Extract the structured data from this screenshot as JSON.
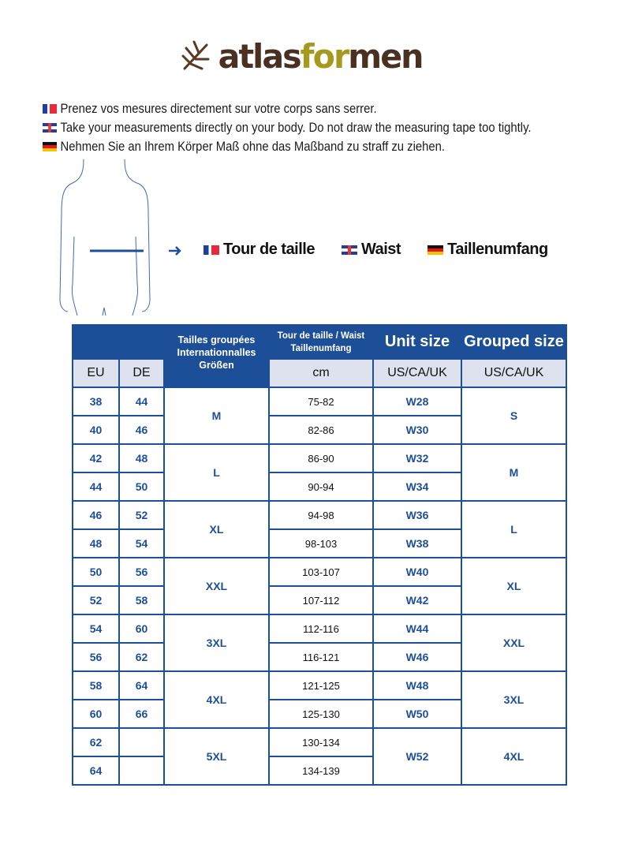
{
  "brand": {
    "logo_part1": "atlas",
    "logo_part2": "for",
    "logo_part3": "men",
    "colors": {
      "brown": "#4a3020",
      "olive": "#a59a1e"
    }
  },
  "instructions": [
    {
      "flag": "fr",
      "text": "Prenez vos mesures directement sur votre corps sans serrer."
    },
    {
      "flag": "uk",
      "text": "Take your measurements directly on your body. Do not draw the measuring tape too tightly."
    },
    {
      "flag": "de",
      "text": "Nehmen Sie an Ihrem Körper Maß ohne das Maßband zu straff zu ziehen."
    }
  ],
  "measure_labels": {
    "fr": "Tour de taille",
    "uk": "Waist",
    "de": "Taillenumfang"
  },
  "table": {
    "headers": {
      "grouped_intl": "Tailles groupées Internationnalles Größen",
      "waist_line1": "Tour de taille / Waist",
      "waist_line2": "Taillenumfang",
      "unit_size": "Unit size",
      "grouped_size": "Grouped size",
      "eu": "EU",
      "de": "DE",
      "cm": "cm",
      "us1": "US/CA/UK",
      "us2": "US/CA/UK"
    },
    "rows": [
      {
        "eu": "38",
        "de": "44",
        "cm": "75-82",
        "unit": "W28"
      },
      {
        "eu": "40",
        "de": "46",
        "cm": "82-86",
        "unit": "W30"
      },
      {
        "eu": "42",
        "de": "48",
        "cm": "86-90",
        "unit": "W32"
      },
      {
        "eu": "44",
        "de": "50",
        "cm": "90-94",
        "unit": "W34"
      },
      {
        "eu": "46",
        "de": "52",
        "cm": "94-98",
        "unit": "W36"
      },
      {
        "eu": "48",
        "de": "54",
        "cm": "98-103",
        "unit": "W38"
      },
      {
        "eu": "50",
        "de": "56",
        "cm": "103-107",
        "unit": "W40"
      },
      {
        "eu": "52",
        "de": "58",
        "cm": "107-112",
        "unit": "W42"
      },
      {
        "eu": "54",
        "de": "60",
        "cm": "112-116",
        "unit": "W44"
      },
      {
        "eu": "56",
        "de": "62",
        "cm": "116-121",
        "unit": "W46"
      },
      {
        "eu": "58",
        "de": "64",
        "cm": "121-125",
        "unit": "W48"
      },
      {
        "eu": "60",
        "de": "66",
        "cm": "125-130",
        "unit": "W50"
      },
      {
        "eu": "62",
        "de": "",
        "cm": "130-134",
        "unit": "W52"
      },
      {
        "eu": "64",
        "de": "",
        "cm": "134-139",
        "unit": ""
      }
    ],
    "intl_groups": [
      "M",
      "L",
      "XL",
      "XXL",
      "3XL",
      "4XL",
      "5XL"
    ],
    "us_groups": [
      "S",
      "M",
      "L",
      "XL",
      "XXL",
      "3XL",
      "4XL"
    ]
  }
}
